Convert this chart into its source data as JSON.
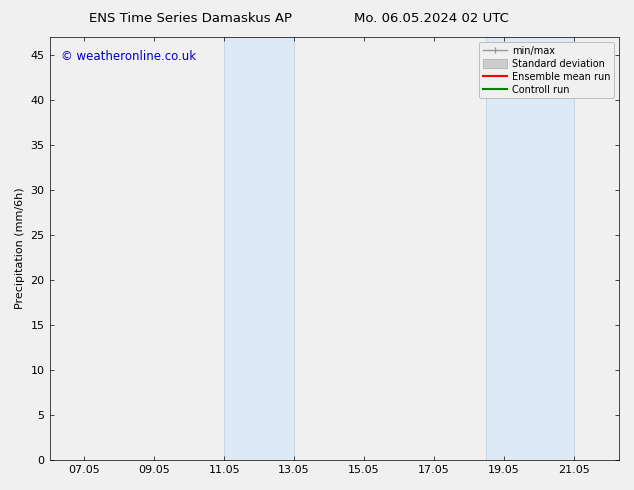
{
  "title_left": "ENS Time Series Damaskus AP",
  "title_right": "Mo. 06.05.2024 02 UTC",
  "ylabel": "Precipitation (mm/6h)",
  "watermark": "© weatheronline.co.uk",
  "watermark_color": "#0000cc",
  "xlim_start": 6.0,
  "xlim_end": 22.3,
  "ylim": [
    0,
    47
  ],
  "yticks": [
    0,
    5,
    10,
    15,
    20,
    25,
    30,
    35,
    40,
    45
  ],
  "xtick_labels": [
    "07.05",
    "09.05",
    "11.05",
    "13.05",
    "15.05",
    "17.05",
    "19.05",
    "21.05"
  ],
  "xtick_positions": [
    7,
    9,
    11,
    13,
    15,
    17,
    19,
    21
  ],
  "shaded_bands": [
    {
      "x_start": 11.0,
      "x_end": 13.0
    },
    {
      "x_start": 18.5,
      "x_end": 21.0
    }
  ],
  "shade_color": "#ddeaf5",
  "shade_edge_color": "#b8cfe0",
  "background_color": "#f0f0f0",
  "legend_items": [
    {
      "label": "min/max",
      "color": "#999999",
      "lw": 1.0
    },
    {
      "label": "Standard deviation",
      "color": "#cccccc",
      "lw": 6
    },
    {
      "label": "Ensemble mean run",
      "color": "#ff0000",
      "lw": 1.5
    },
    {
      "label": "Controll run",
      "color": "#008000",
      "lw": 1.5
    }
  ],
  "title_fontsize": 9.5,
  "tick_fontsize": 8,
  "ylabel_fontsize": 8,
  "watermark_fontsize": 8.5
}
